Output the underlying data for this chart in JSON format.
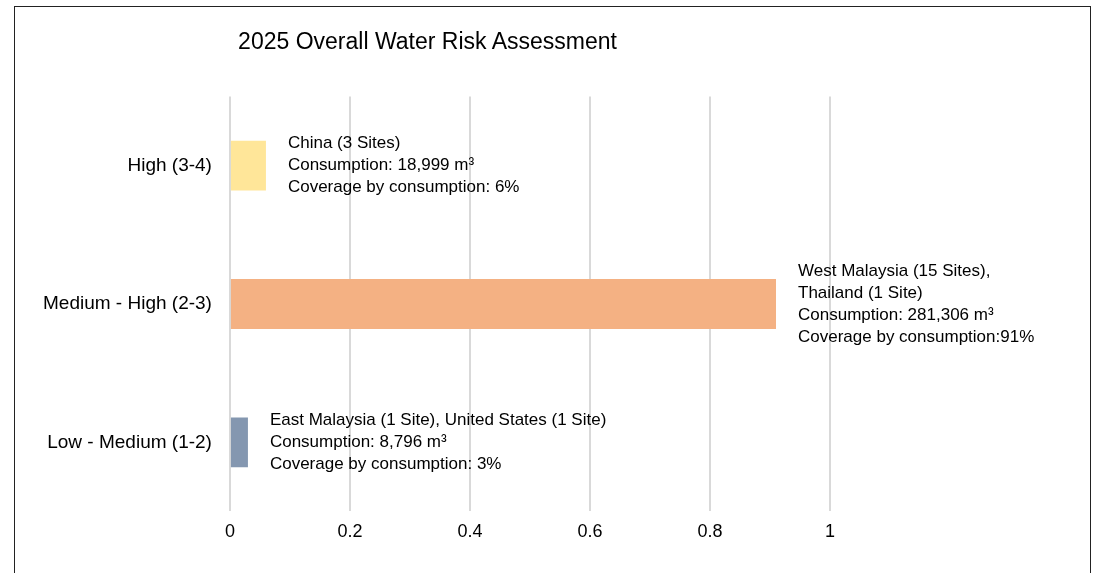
{
  "chart_data": {
    "type": "bar",
    "orientation": "horizontal",
    "title": "2025 Overall Water Risk Assessment",
    "categories": [
      "High (3-4)",
      "Medium - High (2-3)",
      "Low - Medium (1-2)"
    ],
    "values": [
      0.06,
      0.91,
      0.03
    ],
    "colors": [
      "#ffe699",
      "#f4b183",
      "#8497b0"
    ],
    "xlim": [
      0,
      1
    ],
    "xticks": [
      0,
      0.2,
      0.4,
      0.6,
      0.8,
      1
    ],
    "grid": "x",
    "legend": false,
    "annotations": [
      {
        "text": "China (3 Sites)\nConsumption: 18,999 m³\nCoverage by consumption: 6%",
        "x": 0.06,
        "y": "High (3-4)"
      },
      {
        "text": "West Malaysia (15 Sites),\nThailand (1 Site)\nConsumption: 281,306 m³\nCoverage by consumption:91%",
        "x": 0.91,
        "y": "Medium - High (2-3)"
      },
      {
        "text": "East Malaysia (1 Site), United States (1 Site)\nConsumption: 8,796 m³\nCoverage by consumption: 3%",
        "x": 0.03,
        "y": "Low - Medium (1-2)"
      }
    ]
  }
}
